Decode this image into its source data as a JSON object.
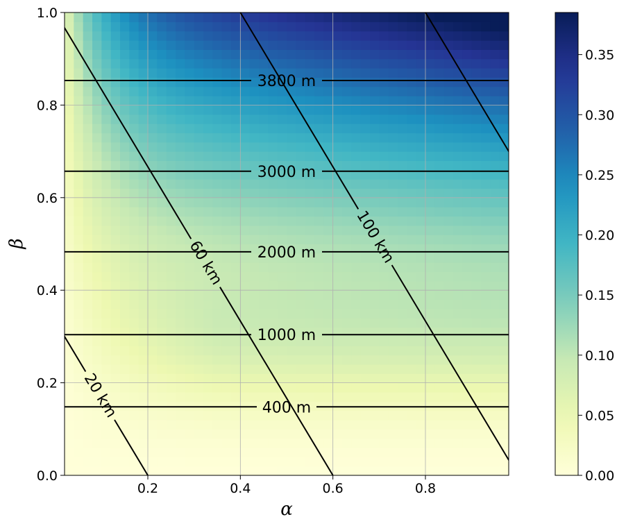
{
  "chart_data": {
    "type": "heatmap",
    "title": "",
    "xlabel": "α",
    "ylabel": "β",
    "xlim": [
      0.02,
      0.98
    ],
    "ylim": [
      0.0,
      1.0
    ],
    "grid": true,
    "x_ticks": [
      {
        "value": 0.2,
        "label": "0.2"
      },
      {
        "value": 0.4,
        "label": "0.4"
      },
      {
        "value": 0.6,
        "label": "0.6"
      },
      {
        "value": 0.8,
        "label": "0.8"
      }
    ],
    "y_ticks": [
      {
        "value": 0.0,
        "label": "0.0"
      },
      {
        "value": 0.2,
        "label": "0.2"
      },
      {
        "value": 0.4,
        "label": "0.4"
      },
      {
        "value": 0.6,
        "label": "0.6"
      },
      {
        "value": 0.8,
        "label": "0.8"
      },
      {
        "value": 1.0,
        "label": "1.0"
      }
    ],
    "colormap": "YlGnBu",
    "colorbar": {
      "range": [
        0.0,
        0.385
      ],
      "ticks": [
        {
          "value": 0.0,
          "label": "0.00"
        },
        {
          "value": 0.05,
          "label": "0.05"
        },
        {
          "value": 0.1,
          "label": "0.10"
        },
        {
          "value": 0.15,
          "label": "0.15"
        },
        {
          "value": 0.2,
          "label": "0.20"
        },
        {
          "value": 0.25,
          "label": "0.25"
        },
        {
          "value": 0.3,
          "label": "0.30"
        },
        {
          "value": 0.35,
          "label": "0.35"
        }
      ]
    },
    "horizontal_contours": [
      {
        "label": "400 m",
        "beta": 0.148
      },
      {
        "label": "1000 m",
        "beta": 0.304
      },
      {
        "label": "2000 m",
        "beta": 0.483
      },
      {
        "label": "3000 m",
        "beta": 0.657
      },
      {
        "label": "3800 m",
        "beta": 0.853
      }
    ],
    "diagonal_contours": [
      {
        "label": "20 km",
        "alpha_at_beta0": 0.2,
        "alpha_at_beta1": -0.4,
        "label_alpha": 0.11,
        "label_beta": 0.18
      },
      {
        "label": "60 km",
        "alpha_at_beta0": 0.6,
        "alpha_at_beta1": 0.0,
        "label_alpha": 0.36,
        "label_beta": 0.48
      },
      {
        "label": "100 km",
        "alpha_at_beta0": 1.0,
        "alpha_at_beta1": 0.4,
        "label_alpha": 0.7,
        "label_beta": 0.52
      },
      {
        "label": "",
        "alpha_at_beta0": 1.4,
        "alpha_at_beta1": 0.8,
        "label_alpha": null,
        "label_beta": null
      }
    ]
  }
}
